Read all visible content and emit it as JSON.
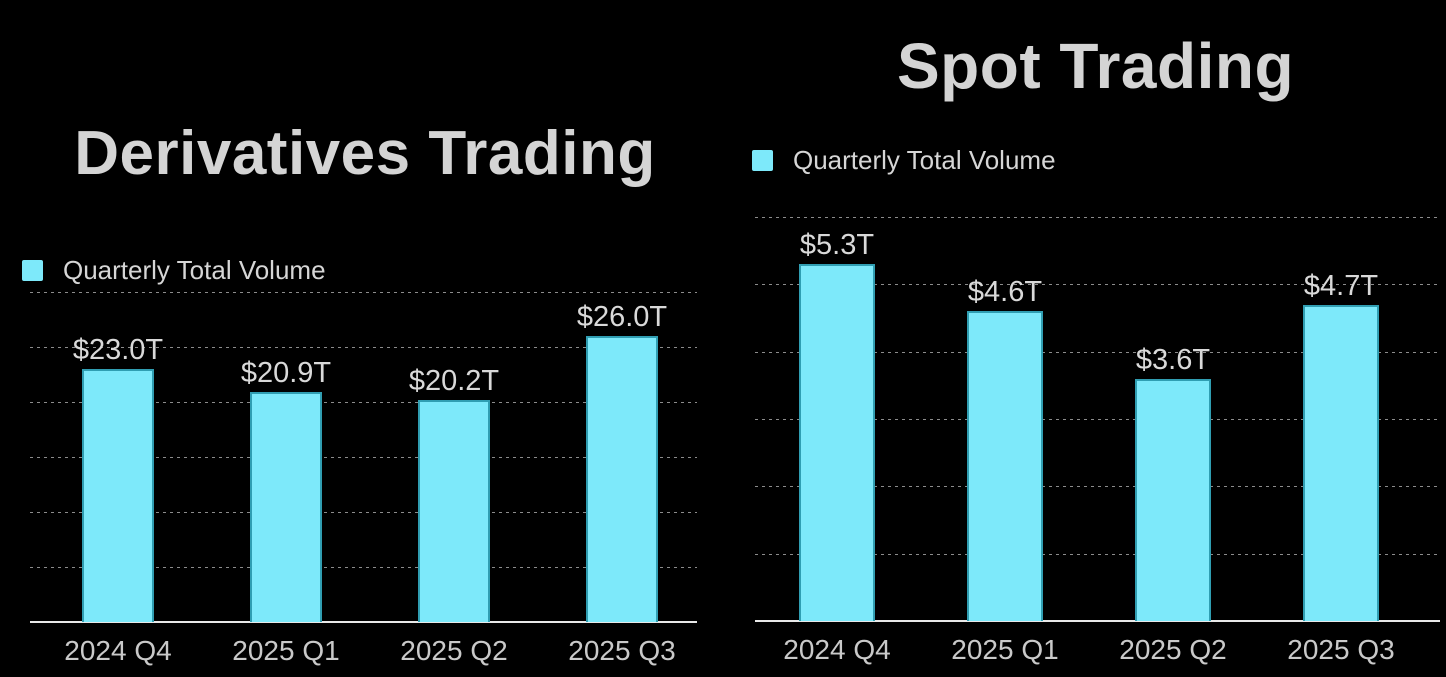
{
  "page": {
    "background": "#000000"
  },
  "colors": {
    "bar_fill": "#7de9fa",
    "bar_edge": "#2290a5",
    "legend_swatch": "#7de9fa",
    "title_text": "#d4d4d4",
    "value_label_text": "#d9d9d9",
    "tick_label_text": "#c9c9c9",
    "gridline": "#8c8c8c",
    "axis_line": "#e9e9e9"
  },
  "chart_data": [
    {
      "type": "bar",
      "title": "Derivatives Trading",
      "legend_label": "Quarterly Total Volume",
      "legend_position": "top-left",
      "categories": [
        "2024 Q4",
        "2025 Q1",
        "2025 Q2",
        "2025 Q3"
      ],
      "series": [
        {
          "name": "Quarterly Total Volume",
          "values": [
            23.0,
            20.9,
            20.2,
            26.0
          ],
          "value_labels": [
            "$23.0T",
            "$20.9T",
            "$20.2T",
            "$26.0T"
          ]
        }
      ],
      "xlabel": "",
      "ylabel": "",
      "ylim": [
        0,
        30
      ],
      "grid_step": 5,
      "grid": true,
      "unit": "trillion USD"
    },
    {
      "type": "bar",
      "title": "Spot Trading",
      "legend_label": "Quarterly Total Volume",
      "legend_position": "top-left",
      "categories": [
        "2024 Q4",
        "2025 Q1",
        "2025 Q2",
        "2025 Q3"
      ],
      "series": [
        {
          "name": "Quarterly Total Volume",
          "values": [
            5.3,
            4.6,
            3.6,
            4.7
          ],
          "value_labels": [
            "$5.3T",
            "$4.6T",
            "$3.6T",
            "$4.7T"
          ]
        }
      ],
      "xlabel": "",
      "ylabel": "",
      "ylim": [
        0,
        6
      ],
      "grid_step": 1,
      "grid": true,
      "unit": "trillion USD"
    }
  ]
}
